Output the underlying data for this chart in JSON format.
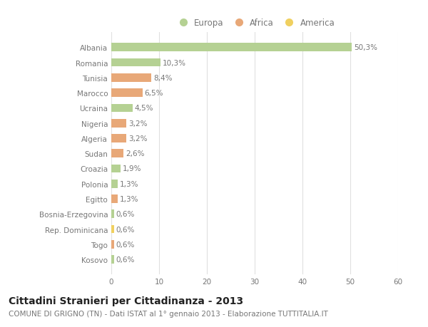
{
  "countries": [
    "Albania",
    "Romania",
    "Tunisia",
    "Marocco",
    "Ucraina",
    "Nigeria",
    "Algeria",
    "Sudan",
    "Croazia",
    "Polonia",
    "Egitto",
    "Bosnia-Erzegovina",
    "Rep. Dominicana",
    "Togo",
    "Kosovo"
  ],
  "values": [
    50.3,
    10.3,
    8.4,
    6.5,
    4.5,
    3.2,
    3.2,
    2.6,
    1.9,
    1.3,
    1.3,
    0.6,
    0.6,
    0.6,
    0.6
  ],
  "labels": [
    "50,3%",
    "10,3%",
    "8,4%",
    "6,5%",
    "4,5%",
    "3,2%",
    "3,2%",
    "2,6%",
    "1,9%",
    "1,3%",
    "1,3%",
    "0,6%",
    "0,6%",
    "0,6%",
    "0,6%"
  ],
  "continent": [
    "Europa",
    "Europa",
    "Africa",
    "Africa",
    "Europa",
    "Africa",
    "Africa",
    "Africa",
    "Europa",
    "Europa",
    "Africa",
    "Europa",
    "America",
    "Africa",
    "Europa"
  ],
  "colors": {
    "Europa": "#b5d193",
    "Africa": "#e8a878",
    "America": "#f0d060"
  },
  "xlim": [
    0,
    60
  ],
  "xticks": [
    0,
    10,
    20,
    30,
    40,
    50,
    60
  ],
  "title": "Cittadini Stranieri per Cittadinanza - 2013",
  "subtitle": "COMUNE DI GRIGNO (TN) - Dati ISTAT al 1° gennaio 2013 - Elaborazione TUTTITALIA.IT",
  "bg_color": "#ffffff",
  "bar_height": 0.55,
  "grid_color": "#e0e0e0",
  "text_color": "#777777",
  "title_color": "#222222",
  "label_fontsize": 7.5,
  "tick_fontsize": 7.5,
  "title_fontsize": 10,
  "subtitle_fontsize": 7.5,
  "legend_labels": [
    "Europa",
    "Africa",
    "America"
  ]
}
